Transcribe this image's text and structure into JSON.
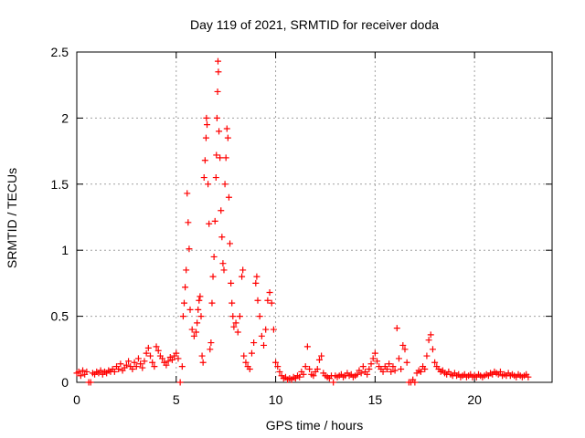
{
  "chart_data": {
    "type": "scatter",
    "title": "Day 119 of 2021, SRMTID for receiver doda",
    "xlabel": "GPS time / hours",
    "ylabel": "SRMTID / TECUs",
    "xlim": [
      0,
      23.9
    ],
    "ylim": [
      0,
      2.5
    ],
    "xticks": [
      0,
      5,
      10,
      15,
      20
    ],
    "xtick_labels": [
      "0",
      "5",
      "10",
      "15",
      "20"
    ],
    "yticks": [
      0,
      0.5,
      1,
      1.5,
      2,
      2.5
    ],
    "ytick_labels": [
      "0",
      "0.5",
      "1",
      "1.5",
      "2",
      "2.5"
    ],
    "grid": true,
    "marker": "+",
    "color": "#ff0000",
    "series": [
      {
        "name": "SRMTID",
        "points": [
          [
            0.0,
            0.07
          ],
          [
            0.1,
            0.08
          ],
          [
            0.2,
            0.05
          ],
          [
            0.3,
            0.09
          ],
          [
            0.4,
            0.06
          ],
          [
            0.5,
            0.08
          ],
          [
            0.6,
            0.0
          ],
          [
            0.7,
            0.0
          ],
          [
            0.8,
            0.07
          ],
          [
            0.9,
            0.06
          ],
          [
            1.0,
            0.08
          ],
          [
            1.1,
            0.07
          ],
          [
            1.2,
            0.09
          ],
          [
            1.3,
            0.06
          ],
          [
            1.4,
            0.08
          ],
          [
            1.5,
            0.07
          ],
          [
            1.6,
            0.09
          ],
          [
            1.7,
            0.08
          ],
          [
            1.8,
            0.1
          ],
          [
            1.9,
            0.08
          ],
          [
            2.0,
            0.12
          ],
          [
            2.1,
            0.1
          ],
          [
            2.2,
            0.14
          ],
          [
            2.3,
            0.09
          ],
          [
            2.4,
            0.11
          ],
          [
            2.5,
            0.13
          ],
          [
            2.6,
            0.16
          ],
          [
            2.7,
            0.12
          ],
          [
            2.8,
            0.1
          ],
          [
            2.9,
            0.15
          ],
          [
            3.0,
            0.12
          ],
          [
            3.1,
            0.18
          ],
          [
            3.2,
            0.14
          ],
          [
            3.3,
            0.11
          ],
          [
            3.4,
            0.16
          ],
          [
            3.5,
            0.22
          ],
          [
            3.6,
            0.26
          ],
          [
            3.7,
            0.2
          ],
          [
            3.8,
            0.15
          ],
          [
            3.9,
            0.12
          ],
          [
            4.0,
            0.27
          ],
          [
            4.1,
            0.24
          ],
          [
            4.2,
            0.2
          ],
          [
            4.3,
            0.18
          ],
          [
            4.4,
            0.15
          ],
          [
            4.5,
            0.13
          ],
          [
            4.6,
            0.16
          ],
          [
            4.7,
            0.19
          ],
          [
            4.8,
            0.17
          ],
          [
            4.9,
            0.2
          ],
          [
            5.0,
            0.22
          ],
          [
            5.1,
            0.18
          ],
          [
            5.2,
            0.0
          ],
          [
            5.3,
            0.12
          ],
          [
            5.35,
            0.5
          ],
          [
            5.4,
            0.6
          ],
          [
            5.45,
            0.72
          ],
          [
            5.5,
            0.85
          ],
          [
            5.55,
            1.43
          ],
          [
            5.6,
            1.21
          ],
          [
            5.65,
            1.01
          ],
          [
            5.7,
            0.55
          ],
          [
            5.8,
            0.4
          ],
          [
            5.9,
            0.35
          ],
          [
            6.0,
            0.38
          ],
          [
            6.05,
            0.45
          ],
          [
            6.1,
            0.55
          ],
          [
            6.15,
            0.62
          ],
          [
            6.2,
            0.65
          ],
          [
            6.25,
            0.5
          ],
          [
            6.3,
            0.2
          ],
          [
            6.35,
            0.15
          ],
          [
            6.4,
            1.55
          ],
          [
            6.45,
            1.68
          ],
          [
            6.5,
            1.85
          ],
          [
            6.52,
            2.0
          ],
          [
            6.55,
            1.95
          ],
          [
            6.6,
            1.5
          ],
          [
            6.65,
            1.2
          ],
          [
            6.7,
            0.25
          ],
          [
            6.75,
            0.3
          ],
          [
            6.8,
            0.6
          ],
          [
            6.85,
            0.8
          ],
          [
            6.9,
            0.95
          ],
          [
            6.95,
            1.22
          ],
          [
            7.0,
            1.55
          ],
          [
            7.02,
            1.72
          ],
          [
            7.05,
            2.0
          ],
          [
            7.08,
            2.2
          ],
          [
            7.1,
            2.43
          ],
          [
            7.12,
            2.35
          ],
          [
            7.15,
            1.9
          ],
          [
            7.2,
            1.7
          ],
          [
            7.25,
            1.3
          ],
          [
            7.3,
            1.1
          ],
          [
            7.35,
            0.9
          ],
          [
            7.4,
            0.85
          ],
          [
            7.45,
            1.5
          ],
          [
            7.5,
            1.7
          ],
          [
            7.55,
            1.92
          ],
          [
            7.6,
            1.85
          ],
          [
            7.65,
            1.4
          ],
          [
            7.7,
            1.05
          ],
          [
            7.75,
            0.75
          ],
          [
            7.8,
            0.6
          ],
          [
            7.85,
            0.5
          ],
          [
            7.9,
            0.42
          ],
          [
            8.0,
            0.45
          ],
          [
            8.1,
            0.38
          ],
          [
            8.2,
            0.5
          ],
          [
            8.3,
            0.8
          ],
          [
            8.35,
            0.85
          ],
          [
            8.4,
            0.2
          ],
          [
            8.5,
            0.15
          ],
          [
            8.6,
            0.12
          ],
          [
            8.7,
            0.1
          ],
          [
            8.8,
            0.22
          ],
          [
            8.9,
            0.3
          ],
          [
            9.0,
            0.75
          ],
          [
            9.05,
            0.8
          ],
          [
            9.1,
            0.62
          ],
          [
            9.2,
            0.5
          ],
          [
            9.3,
            0.35
          ],
          [
            9.4,
            0.28
          ],
          [
            9.5,
            0.4
          ],
          [
            9.6,
            0.62
          ],
          [
            9.7,
            0.68
          ],
          [
            9.8,
            0.6
          ],
          [
            9.9,
            0.4
          ],
          [
            10.0,
            0.15
          ],
          [
            10.1,
            0.12
          ],
          [
            10.2,
            0.08
          ],
          [
            10.3,
            0.05
          ],
          [
            10.4,
            0.03
          ],
          [
            10.5,
            0.04
          ],
          [
            10.6,
            0.02
          ],
          [
            10.7,
            0.03
          ],
          [
            10.8,
            0.02
          ],
          [
            10.9,
            0.04
          ],
          [
            11.0,
            0.03
          ],
          [
            11.1,
            0.05
          ],
          [
            11.2,
            0.04
          ],
          [
            11.3,
            0.08
          ],
          [
            11.4,
            0.06
          ],
          [
            11.5,
            0.12
          ],
          [
            11.6,
            0.27
          ],
          [
            11.7,
            0.1
          ],
          [
            11.8,
            0.06
          ],
          [
            11.9,
            0.05
          ],
          [
            12.0,
            0.08
          ],
          [
            12.1,
            0.1
          ],
          [
            12.2,
            0.17
          ],
          [
            12.3,
            0.2
          ],
          [
            12.4,
            0.07
          ],
          [
            12.5,
            0.05
          ],
          [
            12.6,
            0.04
          ],
          [
            12.7,
            0.03
          ],
          [
            12.8,
            0.05
          ],
          [
            12.9,
            0.0
          ],
          [
            13.0,
            0.05
          ],
          [
            13.1,
            0.04
          ],
          [
            13.2,
            0.05
          ],
          [
            13.3,
            0.06
          ],
          [
            13.4,
            0.04
          ],
          [
            13.5,
            0.05
          ],
          [
            13.6,
            0.07
          ],
          [
            13.7,
            0.05
          ],
          [
            13.8,
            0.06
          ],
          [
            13.9,
            0.04
          ],
          [
            14.0,
            0.05
          ],
          [
            14.1,
            0.06
          ],
          [
            14.2,
            0.09
          ],
          [
            14.3,
            0.07
          ],
          [
            14.4,
            0.12
          ],
          [
            14.5,
            0.08
          ],
          [
            14.6,
            0.06
          ],
          [
            14.7,
            0.1
          ],
          [
            14.8,
            0.14
          ],
          [
            14.9,
            0.18
          ],
          [
            15.0,
            0.22
          ],
          [
            15.1,
            0.16
          ],
          [
            15.2,
            0.12
          ],
          [
            15.3,
            0.1
          ],
          [
            15.4,
            0.08
          ],
          [
            15.5,
            0.12
          ],
          [
            15.6,
            0.1
          ],
          [
            15.7,
            0.14
          ],
          [
            15.8,
            0.08
          ],
          [
            15.9,
            0.12
          ],
          [
            16.0,
            0.09
          ],
          [
            16.1,
            0.41
          ],
          [
            16.2,
            0.18
          ],
          [
            16.3,
            0.1
          ],
          [
            16.4,
            0.28
          ],
          [
            16.5,
            0.25
          ],
          [
            16.6,
            0.15
          ],
          [
            16.7,
            0.0
          ],
          [
            16.8,
            0.0
          ],
          [
            16.9,
            0.02
          ],
          [
            17.0,
            0.0
          ],
          [
            17.1,
            0.07
          ],
          [
            17.2,
            0.09
          ],
          [
            17.3,
            0.08
          ],
          [
            17.4,
            0.12
          ],
          [
            17.5,
            0.1
          ],
          [
            17.6,
            0.2
          ],
          [
            17.7,
            0.32
          ],
          [
            17.8,
            0.36
          ],
          [
            17.9,
            0.25
          ],
          [
            18.0,
            0.15
          ],
          [
            18.1,
            0.12
          ],
          [
            18.2,
            0.1
          ],
          [
            18.3,
            0.08
          ],
          [
            18.4,
            0.09
          ],
          [
            18.5,
            0.07
          ],
          [
            18.6,
            0.06
          ],
          [
            18.7,
            0.08
          ],
          [
            18.8,
            0.06
          ],
          [
            18.9,
            0.05
          ],
          [
            19.0,
            0.07
          ],
          [
            19.1,
            0.05
          ],
          [
            19.2,
            0.06
          ],
          [
            19.3,
            0.04
          ],
          [
            19.4,
            0.05
          ],
          [
            19.5,
            0.06
          ],
          [
            19.6,
            0.04
          ],
          [
            19.7,
            0.05
          ],
          [
            19.8,
            0.06
          ],
          [
            19.9,
            0.04
          ],
          [
            20.0,
            0.05
          ],
          [
            20.1,
            0.04
          ],
          [
            20.2,
            0.06
          ],
          [
            20.3,
            0.05
          ],
          [
            20.4,
            0.04
          ],
          [
            20.5,
            0.05
          ],
          [
            20.6,
            0.06
          ],
          [
            20.7,
            0.05
          ],
          [
            20.8,
            0.07
          ],
          [
            20.9,
            0.06
          ],
          [
            21.0,
            0.08
          ],
          [
            21.1,
            0.07
          ],
          [
            21.2,
            0.06
          ],
          [
            21.3,
            0.08
          ],
          [
            21.4,
            0.05
          ],
          [
            21.5,
            0.06
          ],
          [
            21.6,
            0.05
          ],
          [
            21.7,
            0.07
          ],
          [
            21.8,
            0.05
          ],
          [
            21.9,
            0.06
          ],
          [
            22.0,
            0.05
          ],
          [
            22.1,
            0.04
          ],
          [
            22.2,
            0.06
          ],
          [
            22.3,
            0.05
          ],
          [
            22.4,
            0.04
          ],
          [
            22.5,
            0.05
          ],
          [
            22.6,
            0.06
          ],
          [
            22.7,
            0.04
          ]
        ]
      }
    ]
  }
}
